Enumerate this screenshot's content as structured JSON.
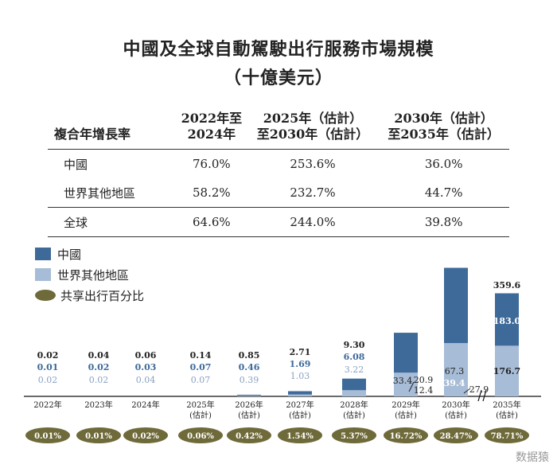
{
  "title": "中國及全球自動駕駛出行服務市場規模",
  "subtitle": "（十億美元）",
  "cagr_table": {
    "header": "複合年增長率",
    "columns": [
      [
        "2022年至",
        "2024年"
      ],
      [
        "2025年（估計）",
        "至2030年（估計）"
      ],
      [
        "2030年（估計）",
        "至2035年（估計）"
      ]
    ],
    "rows": [
      {
        "label": "中國",
        "values": [
          "76.0%",
          "253.6%",
          "36.0%"
        ]
      },
      {
        "label": "世界其他地區",
        "values": [
          "58.2%",
          "232.7%",
          "44.7%"
        ]
      },
      {
        "label": "全球",
        "values": [
          "64.6%",
          "244.0%",
          "39.8%"
        ]
      }
    ]
  },
  "legend": {
    "china": "中國",
    "rest": "世界其他地區",
    "share": "共享出行百分比"
  },
  "colors": {
    "china": "#3e6a9a",
    "rest": "#a7bcd6",
    "share_oval": "#6f6a3a",
    "share_text": "#ffffff"
  },
  "watermark": "数据猿",
  "chart_data": {
    "type": "bar",
    "stacked": true,
    "title": "中國及全球自動駕駛出行服務市場規模（十億美元）",
    "unit": "十億美元",
    "categories": [
      [
        "2022年"
      ],
      [
        "2023年"
      ],
      [
        "2024年"
      ],
      [
        "2025年",
        "(估計)"
      ],
      [
        "2026年",
        "(估計)"
      ],
      [
        "2027年",
        "(估計)"
      ],
      [
        "2028年",
        "(估計)"
      ],
      [
        "2029年",
        "(估計)"
      ],
      [
        "2030年",
        "(估計)"
      ],
      [
        "2035年",
        "(估計)"
      ]
    ],
    "series": [
      {
        "name": "中國",
        "values": [
          0.01,
          0.02,
          0.03,
          0.07,
          0.46,
          1.69,
          6.08,
          20.9,
          39.4,
          183.0
        ],
        "labels": [
          "0.01",
          "0.02",
          "0.03",
          "0.07",
          "0.46",
          "1.69",
          "6.08",
          "20.9",
          "39.4",
          "183.0"
        ]
      },
      {
        "name": "世界其他地區",
        "values": [
          0.02,
          0.02,
          0.04,
          0.07,
          0.39,
          1.03,
          3.22,
          12.4,
          27.9,
          176.7
        ],
        "labels": [
          "0.02",
          "0.02",
          "0.04",
          "0.07",
          "0.39",
          "1.03",
          "3.22",
          "12.4",
          "27.9",
          "176.7"
        ]
      }
    ],
    "totals": [
      0.02,
      0.04,
      0.06,
      0.14,
      0.85,
      2.71,
      9.3,
      33.4,
      67.3,
      359.6
    ],
    "total_labels": [
      "0.02",
      "0.04",
      "0.06",
      "0.14",
      "0.85",
      "2.71",
      "9.30",
      "33.4",
      "67.3",
      "359.6"
    ],
    "share_pct": [
      "0.01%",
      "0.01%",
      "0.02%",
      "0.06%",
      "0.42%",
      "1.54%",
      "5.37%",
      "16.72%",
      "28.47%",
      "78.71%"
    ],
    "axis_break_between": [
      "2030年",
      "2035年"
    ]
  }
}
